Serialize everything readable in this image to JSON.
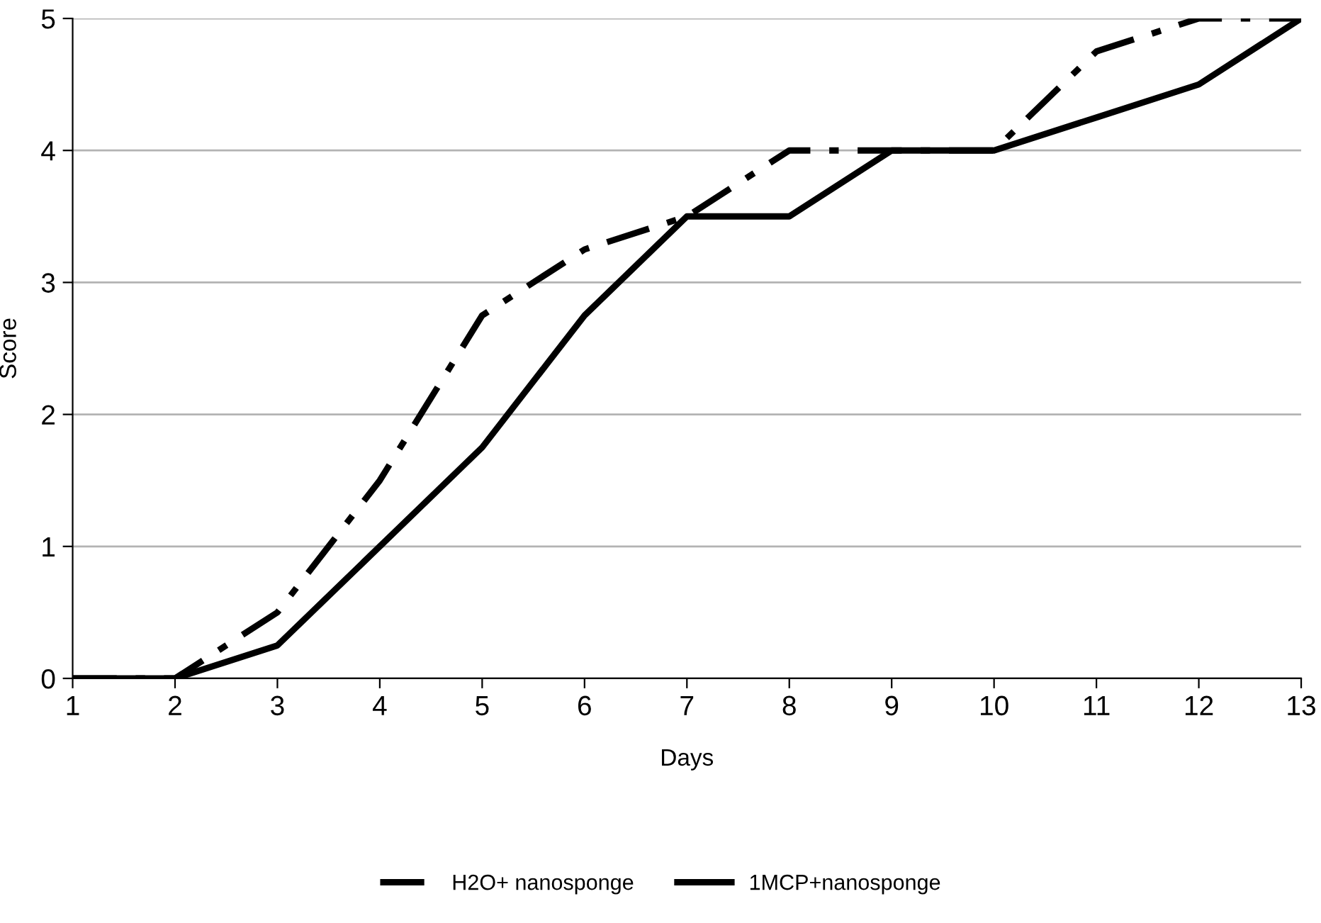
{
  "chart_data": {
    "type": "line",
    "xlabel": "Days",
    "ylabel": "Score",
    "x": [
      1,
      2,
      3,
      4,
      5,
      6,
      7,
      8,
      9,
      10,
      11,
      12,
      13
    ],
    "series": [
      {
        "name": "H2O+ nanosponge",
        "color": "#000000",
        "line_style": "dashed",
        "values": [
          0,
          0,
          0.5,
          1.5,
          2.75,
          3.25,
          3.5,
          4,
          4,
          4,
          4.75,
          5,
          5
        ]
      },
      {
        "name": "1MCP+nanosponge",
        "color": "#000000",
        "line_style": "solid",
        "values": [
          0,
          0,
          0.25,
          1,
          1.75,
          2.75,
          3.5,
          3.5,
          4,
          4,
          4.25,
          4.5,
          5
        ]
      }
    ],
    "xlim": [
      1,
      13
    ],
    "xticks": [
      1,
      2,
      3,
      4,
      5,
      6,
      7,
      8,
      9,
      10,
      11,
      12,
      13
    ],
    "ylim": [
      0,
      5
    ],
    "yticks": [
      0,
      1,
      2,
      3,
      4,
      5
    ],
    "grid": "y",
    "legend": "bottom",
    "marker": "none"
  }
}
